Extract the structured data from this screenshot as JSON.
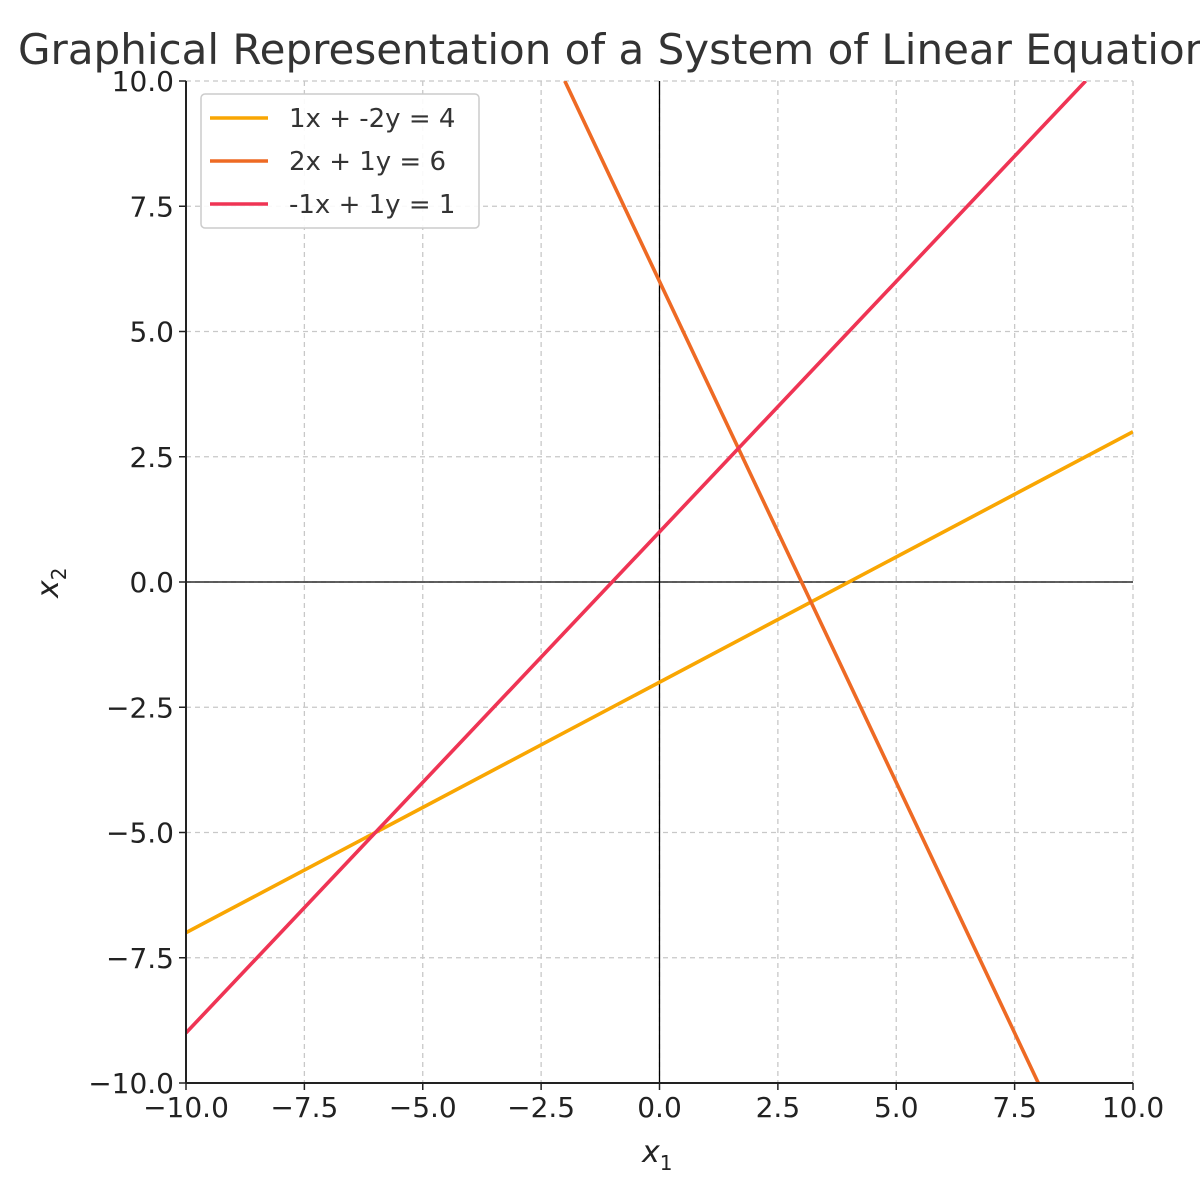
{
  "chart_data": {
    "type": "line",
    "title": "Graphical Representation of a System of Linear Equations",
    "xlabel_base": "x",
    "xlabel_sub": "1",
    "ylabel_base": "x",
    "ylabel_sub": "2",
    "xlim": [
      -10,
      10
    ],
    "ylim": [
      -10,
      10
    ],
    "xticks": [
      -10,
      -7.5,
      -5,
      -2.5,
      0,
      2.5,
      5,
      7.5,
      10
    ],
    "yticks": [
      -10,
      -7.5,
      -5,
      -2.5,
      0,
      2.5,
      5,
      7.5,
      10
    ],
    "xtick_labels": [
      "−10.0",
      "−7.5",
      "−5.0",
      "−2.5",
      "0.0",
      "2.5",
      "5.0",
      "7.5",
      "10.0"
    ],
    "ytick_labels": [
      "−10.0",
      "−7.5",
      "−5.0",
      "−2.5",
      "0.0",
      "2.5",
      "5.0",
      "7.5",
      "10.0"
    ],
    "grid": true,
    "legend_position": "top-left",
    "series": [
      {
        "name": "1x + -2y = 4",
        "a": 1,
        "b": -2,
        "c": 4,
        "color": "#F9A602",
        "x": [
          -10,
          10
        ],
        "y": [
          -7,
          3
        ]
      },
      {
        "name": "2x + 1y = 6",
        "a": 2,
        "b": 1,
        "c": 6,
        "color": "#EE6A24",
        "x": [
          -2,
          8
        ],
        "y": [
          10,
          -10
        ]
      },
      {
        "name": "-1x + 1y = 1",
        "a": -1,
        "b": 1,
        "c": 1,
        "color": "#EF3454",
        "x": [
          -10,
          9
        ],
        "y": [
          -9,
          10
        ]
      }
    ]
  }
}
